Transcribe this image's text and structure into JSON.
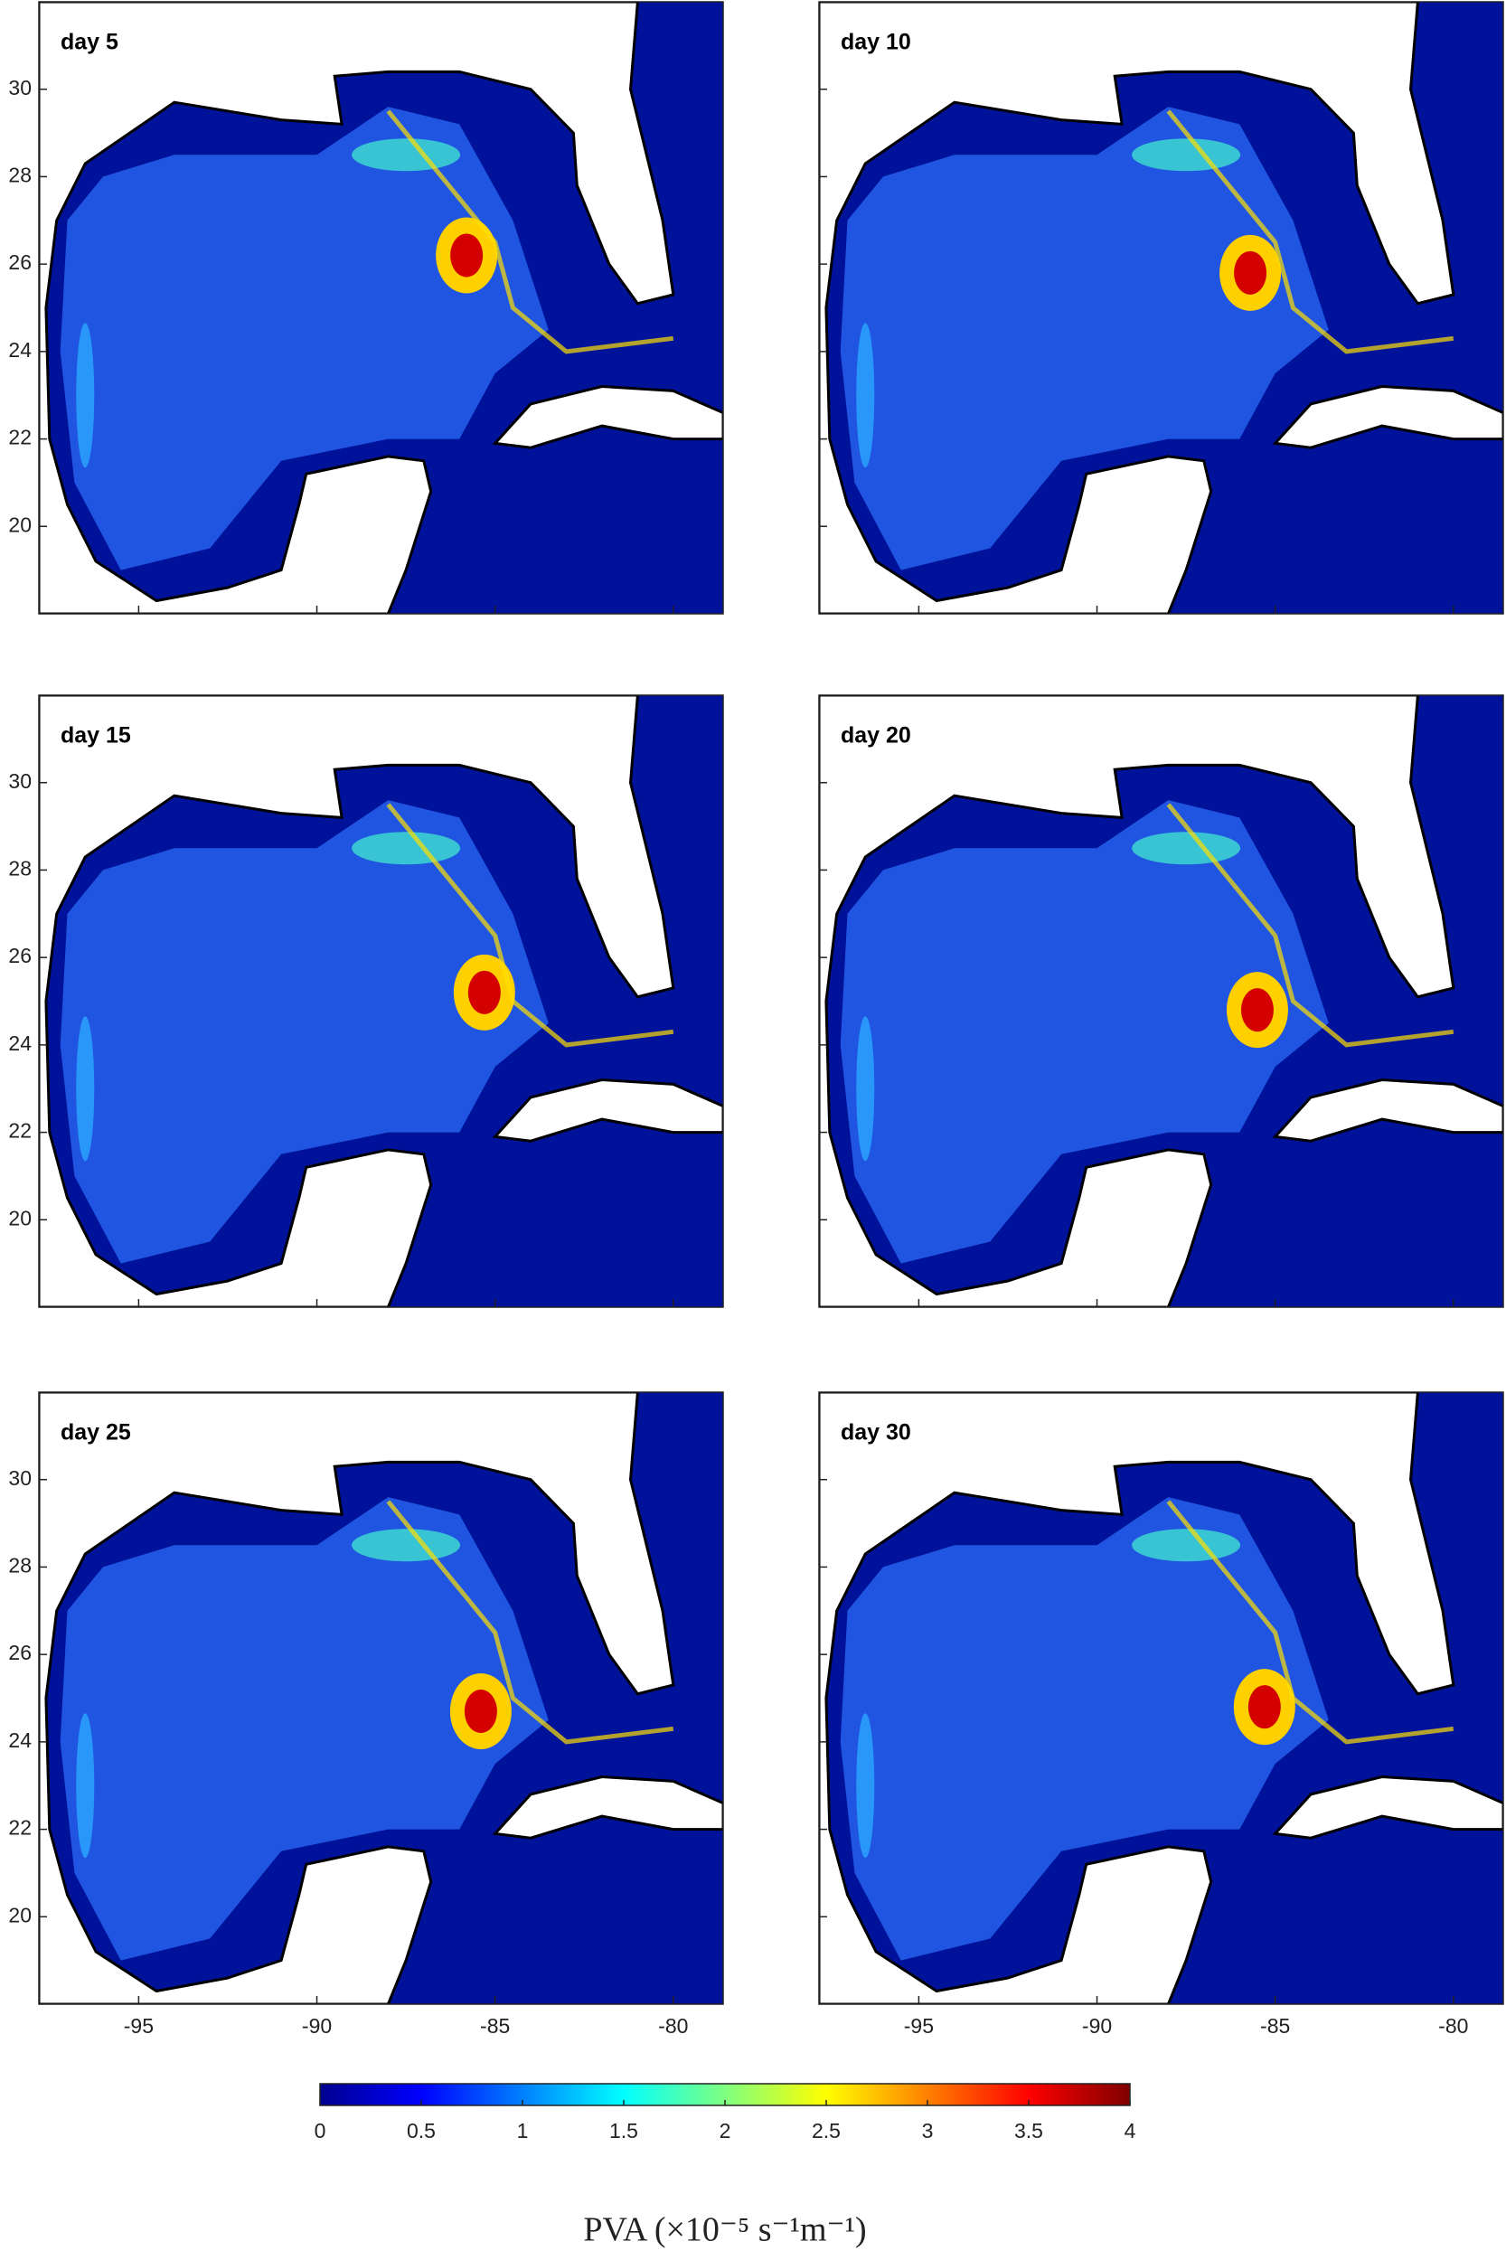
{
  "chart_data": [
    {
      "type": "map",
      "title": "day 5",
      "xlim": [
        -97.8,
        -78.6
      ],
      "ylim": [
        18,
        32
      ],
      "xticks": [
        -95,
        -90,
        -85,
        -80
      ],
      "yticks": [
        20,
        22,
        24,
        26,
        28,
        30
      ]
    },
    {
      "type": "map",
      "title": "day 10",
      "xlim": [
        -97.8,
        -78.6
      ],
      "ylim": [
        18,
        32
      ],
      "xticks": [
        -95,
        -90,
        -85,
        -80
      ],
      "yticks": [
        20,
        22,
        24,
        26,
        28,
        30
      ]
    },
    {
      "type": "map",
      "title": "day 15",
      "xlim": [
        -97.8,
        -78.6
      ],
      "ylim": [
        18,
        32
      ],
      "xticks": [
        -95,
        -90,
        -85,
        -80
      ],
      "yticks": [
        20,
        22,
        24,
        26,
        28,
        30
      ]
    },
    {
      "type": "map",
      "title": "day 20",
      "xlim": [
        -97.8,
        -78.6
      ],
      "ylim": [
        18,
        32
      ],
      "xticks": [
        -95,
        -90,
        -85,
        -80
      ],
      "yticks": [
        20,
        22,
        24,
        26,
        28,
        30
      ]
    },
    {
      "type": "map",
      "title": "day 25",
      "xlim": [
        -97.8,
        -78.6
      ],
      "ylim": [
        18,
        32
      ],
      "xticks": [
        -95,
        -90,
        -85,
        -80
      ],
      "yticks": [
        20,
        22,
        24,
        26,
        28,
        30
      ]
    },
    {
      "type": "map",
      "title": "day 30",
      "xlim": [
        -97.8,
        -78.6
      ],
      "ylim": [
        18,
        32
      ],
      "xticks": [
        -95,
        -90,
        -85,
        -80
      ],
      "yticks": [
        20,
        22,
        24,
        26,
        28,
        30
      ]
    },
    {
      "type": "colorbar",
      "colormap": "jet",
      "xlim": [
        0,
        4
      ],
      "xticks": [
        0,
        0.5,
        1,
        1.5,
        2,
        2.5,
        3,
        3.5,
        4
      ],
      "xlabel": "PVA (×10⁻⁵ s⁻¹m⁻¹)"
    }
  ]
}
